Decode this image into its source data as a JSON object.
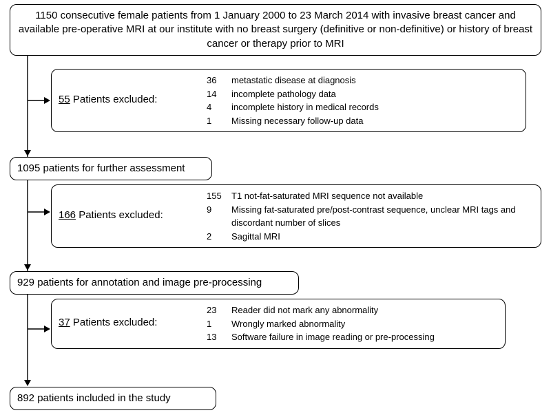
{
  "top_box": {
    "text": "1150 consecutive female patients from 1 January 2000 to 23 March 2014 with invasive breast cancer and available pre-operative MRI at our institute with no breast surgery (definitive or non-definitive) or history of breast cancer or therapy prior to MRI"
  },
  "excl1": {
    "count": "55",
    "label_rest": " Patients excluded:",
    "reasons": [
      {
        "n": "36",
        "t": "metastatic disease at diagnosis"
      },
      {
        "n": "14",
        "t": "incomplete pathology data"
      },
      {
        "n": "4",
        "t": "incomplete history in medical records"
      },
      {
        "n": "1",
        "t": "Missing necessary follow-up data"
      }
    ]
  },
  "stage2": {
    "text": "1095 patients for further assessment"
  },
  "excl2": {
    "count": "166",
    "label_rest": " Patients excluded:",
    "reasons": [
      {
        "n": "155",
        "t": "T1 not-fat-saturated MRI sequence not available"
      },
      {
        "n": "9",
        "t": "Missing fat-saturated pre/post-contrast sequence, unclear MRI tags and discordant number of slices"
      },
      {
        "n": "2",
        "t": "Sagittal MRI"
      }
    ]
  },
  "stage3": {
    "text": "929 patients for  annotation and image pre-processing"
  },
  "excl3": {
    "count": "37",
    "label_rest": " Patients excluded:",
    "reasons": [
      {
        "n": "23",
        "t": "Reader did not mark any abnormality"
      },
      {
        "n": "1",
        "t": "Wrongly marked abnormality"
      },
      {
        "n": "13",
        "t": "Software failure in image reading or pre-processing"
      }
    ]
  },
  "final": {
    "text": "892  patients included in the study"
  }
}
